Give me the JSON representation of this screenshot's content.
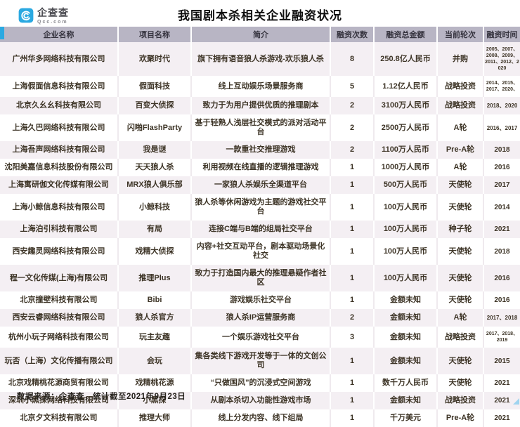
{
  "logo": {
    "name": "企查查",
    "domain": "Qcc.com",
    "accent_color": "#2ba9e1"
  },
  "title": "我国剧本杀相关企业融资状况",
  "footer": "数据来源：企查查，统计截至2021年9月23日",
  "colors": {
    "accent_blue": "#2ba9e1",
    "table_header_bg": "#b8b5c4",
    "row_alt_bg": "#f4eff3",
    "text": "#3d3426"
  },
  "chart_data": {
    "type": "table",
    "title": "我国剧本杀相关企业融资状况",
    "columns": [
      "企业名称",
      "项目名称",
      "简介",
      "融资次数",
      "融资总金额",
      "当前轮次",
      "融资时间"
    ],
    "rows": [
      [
        "广州华多网络科技有限公司",
        "欢聚时代",
        "旗下拥有语音狼人杀游戏-欢乐狼人杀",
        "8",
        "250.8亿人民币",
        "并购",
        "2005、2007、2008、2009、2011、2012、2020"
      ],
      [
        "上海假面信息科技有限公司",
        "假面科技",
        "线上互动娱乐场景服务商",
        "5",
        "1.12亿人民币",
        "战略投资",
        "2014、2015、2017、2020、"
      ],
      [
        "北京久幺幺科技有限公司",
        "百变大侦探",
        "致力于为用户提供优质的推理剧本",
        "2",
        "3100万人民币",
        "战略投资",
        "2018、2020"
      ],
      [
        "上海久巴网络科技有限公司",
        "闪啪FlashParty",
        "基于轻熟人浅层社交模式的派对活动平台",
        "2",
        "2500万人民币",
        "A轮",
        "2016、2017"
      ],
      [
        "上海吾声网络科技有限公司",
        "我是谜",
        "一款重社交推理游戏",
        "2",
        "1100万人民币",
        "Pre-A轮",
        "2018"
      ],
      [
        "沈阳美嘉信息科技股份有限公司",
        "天天狼人杀",
        "利用视频在线直播的逻辑推理游戏",
        "1",
        "1000万人民币",
        "A轮",
        "2016"
      ],
      [
        "上海寓研伽文化传媒有限公司",
        "MRX狼人俱乐部",
        "一家狼人杀娱乐全渠道平台",
        "1",
        "500万人民币",
        "天使轮",
        "2017"
      ],
      [
        "上海小鲸信息科技有限公司",
        "小鲸科技",
        "狼人杀等休闲游戏为主题的游戏社交平台",
        "1",
        "100万人民币",
        "天使轮",
        "2014"
      ],
      [
        "上海泊引科技有限公司",
        "有局",
        "连接C端与B端的组局社交平台",
        "1",
        "100万人民币",
        "种子轮",
        "2021"
      ],
      [
        "西安趣灵网络科技有限公司",
        "戏精大侦探",
        "内容+社交互动平台，剧本驱动场景化社交",
        "1",
        "100万人民币",
        "天使轮",
        "2018"
      ],
      [
        "程一文化传媒(上海)有限公司",
        "推理Plus",
        "致力于打造国内最大的推理悬疑作者社区",
        "1",
        "100万人民币",
        "天使轮",
        "2016"
      ],
      [
        "北京撞壁科技有限公司",
        "Bibi",
        "游戏娱乐社交平台",
        "1",
        "金额未知",
        "天使轮",
        "2016"
      ],
      [
        "西安云睿网络科技有限公司",
        "狼人杀官方",
        "狼人杀IP运营服务商",
        "2",
        "金额未知",
        "A轮",
        "2017、2018"
      ],
      [
        "杭州小玩子网络科技有限公司",
        "玩主友趣",
        "一个娱乐游戏社交平台",
        "3",
        "金额未知",
        "战略投资",
        "2017、2018、2019"
      ],
      [
        "玩否（上海）文化传播有限公司",
        "会玩",
        "集各类线下游戏开发等于一体的文创公司",
        "1",
        "金额未知",
        "天使轮",
        "2015"
      ],
      [
        "北京戏精桃花源商贸有限公司",
        "戏精桃花源",
        "“只做国风”的沉浸式空间游戏",
        "1",
        "数千万人民币",
        "天使轮",
        "2021"
      ],
      [
        "深圳小黑探网络科技有限公司",
        "小黑探",
        "从剧本杀切入功能性游戏市场",
        "1",
        "金额未知",
        "战略投资",
        "2021"
      ],
      [
        "北京夕文科技有限公司",
        "推理大师",
        "线上分发内容、线下组局",
        "1",
        "千万美元",
        "Pre-A轮",
        "2021"
      ]
    ]
  }
}
